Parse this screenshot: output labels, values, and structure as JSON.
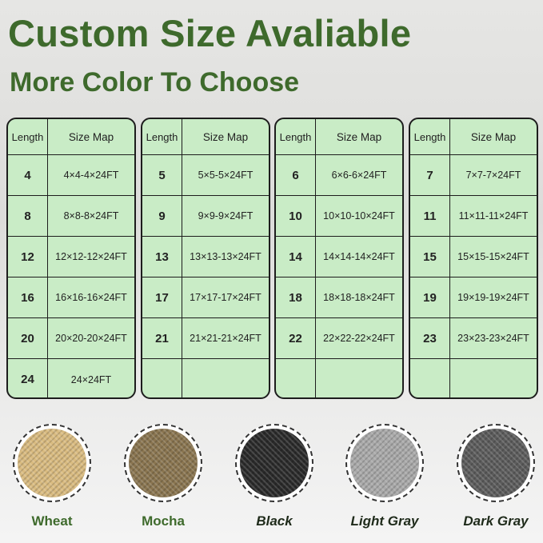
{
  "title": "Custom Size Avaliable",
  "subtitle": "More Color To Choose",
  "table_headers": {
    "length": "Length",
    "size_map": "Size Map"
  },
  "tables": [
    {
      "rows": [
        [
          "4",
          "4×4-4×24FT"
        ],
        [
          "8",
          "8×8-8×24FT"
        ],
        [
          "12",
          "12×12-12×24FT"
        ],
        [
          "16",
          "16×16-16×24FT"
        ],
        [
          "20",
          "20×20-20×24FT"
        ],
        [
          "24",
          "24×24FT"
        ]
      ]
    },
    {
      "rows": [
        [
          "5",
          "5×5-5×24FT"
        ],
        [
          "9",
          "9×9-9×24FT"
        ],
        [
          "13",
          "13×13-13×24FT"
        ],
        [
          "17",
          "17×17-17×24FT"
        ],
        [
          "21",
          "21×21-21×24FT"
        ],
        [
          "",
          ""
        ]
      ]
    },
    {
      "rows": [
        [
          "6",
          "6×6-6×24FT"
        ],
        [
          "10",
          "10×10-10×24FT"
        ],
        [
          "14",
          "14×14-14×24FT"
        ],
        [
          "18",
          "18×18-18×24FT"
        ],
        [
          "22",
          "22×22-22×24FT"
        ],
        [
          "",
          ""
        ]
      ]
    },
    {
      "rows": [
        [
          "7",
          "7×7-7×24FT"
        ],
        [
          "11",
          "11×11-11×24FT"
        ],
        [
          "15",
          "15×15-15×24FT"
        ],
        [
          "19",
          "19×19-19×24FT"
        ],
        [
          "23",
          "23×23-23×24FT"
        ],
        [
          "",
          ""
        ]
      ]
    }
  ],
  "colors": [
    {
      "label": "Wheat",
      "swatch": "#d9bb80",
      "text_color": "#3e6a2c",
      "italic": false
    },
    {
      "label": "Mocha",
      "swatch": "#8a7550",
      "text_color": "#3e6a2c",
      "italic": false
    },
    {
      "label": "Black",
      "swatch": "#2a2a2a",
      "text_color": "#1e2a1a",
      "italic": true
    },
    {
      "label": "Light Gray",
      "swatch": "#a9a9a9",
      "text_color": "#1e2a1a",
      "italic": true
    },
    {
      "label": "Dark Gray",
      "swatch": "#5c5c5c",
      "text_color": "#1e2a1a",
      "italic": true
    }
  ],
  "accent": "#3e6a2c",
  "table_bg": "#c9ecc6"
}
